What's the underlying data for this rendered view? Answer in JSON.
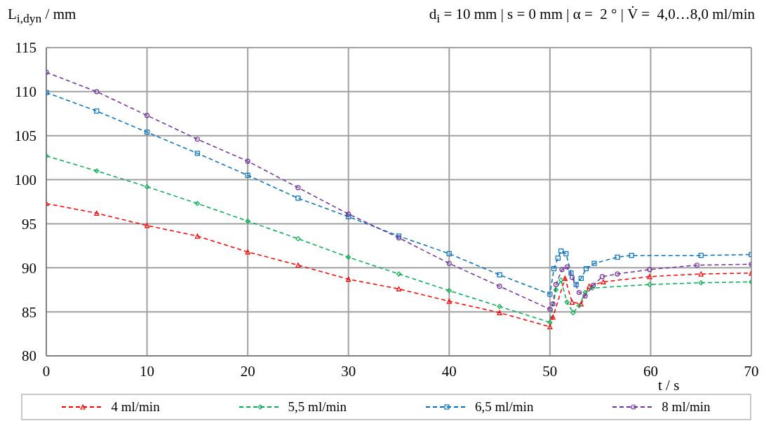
{
  "chart_data": {
    "type": "line",
    "title": "d$_{i}$ = 10 mm | s = 0 mm | α =  2 ° | V̇ =  4,0…8,0 ml/min",
    "ylabel": "L$_{i,dyn}$ / mm",
    "xlabel": "t / s",
    "xlim": [
      0,
      70
    ],
    "xticks": [
      0,
      10,
      20,
      30,
      40,
      50,
      60,
      70
    ],
    "ylim": [
      80,
      115
    ],
    "yticks": [
      80,
      85,
      90,
      95,
      100,
      105,
      110,
      115
    ],
    "grid": true,
    "legend": "bottom",
    "line_style": "dashed",
    "series": [
      {
        "name": "4 ml/min",
        "color": "#ff0000",
        "marker": "triangle",
        "x": [
          0,
          5,
          10,
          15,
          20,
          25,
          30,
          35,
          40,
          45,
          50,
          50.3,
          51.5,
          52.2,
          53.1,
          53.9,
          55.3,
          59.9,
          65,
          70
        ],
        "values": [
          97.3,
          96.2,
          94.8,
          93.6,
          91.8,
          90.3,
          88.7,
          87.6,
          86.2,
          84.9,
          83.3,
          84.4,
          88.8,
          86.1,
          85.9,
          87.9,
          88.4,
          89.0,
          89.3,
          89.4
        ]
      },
      {
        "name": "5,5 ml/min",
        "color": "#00b050",
        "marker": "diamond",
        "x": [
          0,
          5,
          10,
          15,
          20,
          25,
          30,
          35,
          40,
          45,
          50,
          50.6,
          51.1,
          51.7,
          52.3,
          52.9,
          53.5,
          54.2,
          59.9,
          65,
          70
        ],
        "values": [
          102.7,
          101.0,
          99.2,
          97.3,
          95.3,
          93.3,
          91.2,
          89.3,
          87.4,
          85.6,
          83.8,
          87.5,
          88.6,
          86.1,
          84.9,
          85.7,
          87.2,
          87.7,
          88.1,
          88.3,
          88.4
        ]
      },
      {
        "name": "6,5 ml/min",
        "color": "#0070c0",
        "marker": "square",
        "x": [
          0,
          5,
          10,
          15,
          20,
          25,
          30,
          35,
          40,
          45,
          50,
          50.4,
          50.8,
          51.1,
          51.6,
          52.1,
          52.6,
          53.1,
          53.6,
          54.4,
          56.7,
          58.1,
          65,
          70
        ],
        "values": [
          109.9,
          107.8,
          105.4,
          103.0,
          100.5,
          97.9,
          95.8,
          93.6,
          91.6,
          89.2,
          87.0,
          89.9,
          91.1,
          91.9,
          91.6,
          89.4,
          88.1,
          88.8,
          89.9,
          90.5,
          91.2,
          91.4,
          91.4,
          91.5
        ]
      },
      {
        "name": "8 ml/min",
        "color": "#7030a0",
        "marker": "circle",
        "x": [
          0,
          5,
          10,
          15,
          20,
          25,
          30,
          35,
          40,
          45,
          50,
          50.3,
          50.6,
          51.2,
          51.7,
          52.2,
          52.9,
          53.5,
          54.3,
          55.2,
          56.7,
          59.9,
          64.6,
          70
        ],
        "values": [
          112.2,
          110.0,
          107.3,
          104.6,
          102.1,
          99.1,
          96.1,
          93.4,
          90.5,
          87.9,
          85.3,
          85.9,
          88.1,
          89.8,
          90.1,
          88.9,
          87.2,
          86.8,
          88.0,
          89.0,
          89.3,
          89.8,
          90.3,
          90.4
        ]
      }
    ]
  }
}
